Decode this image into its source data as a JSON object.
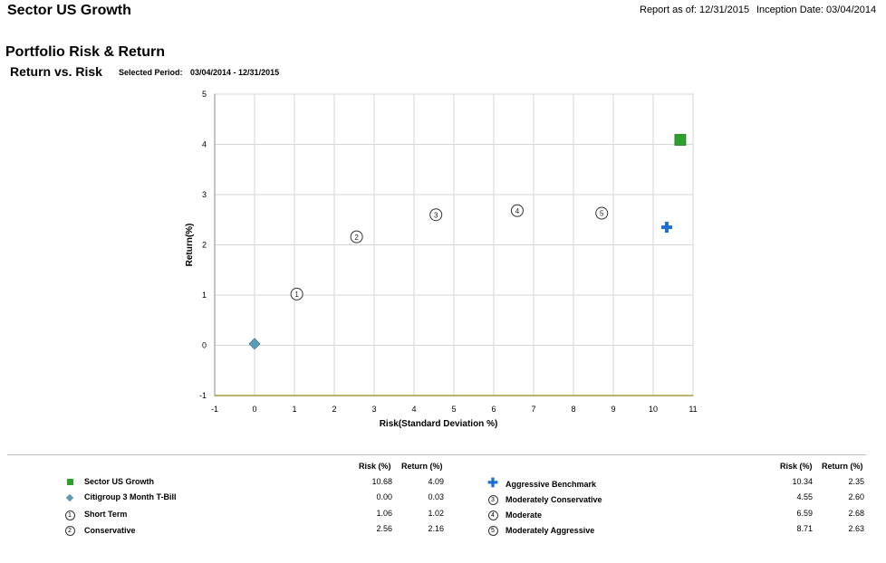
{
  "header": {
    "fund_name": "Sector US Growth",
    "report_as_of": "Report as of: 12/31/2015",
    "inception": "Inception Date: 03/04/2014"
  },
  "section": {
    "title": "Portfolio Risk & Return",
    "chart_title": "Return vs. Risk",
    "period_label": "Selected Period:",
    "period_value": "03/04/2014  -  12/31/2015"
  },
  "chart_data": {
    "type": "scatter",
    "xlabel": "Risk(Standard Deviation %)",
    "ylabel": "Return(%)",
    "xlim": [
      -1,
      11
    ],
    "ylim": [
      -1,
      5
    ],
    "xticks": [
      -1,
      0,
      1,
      2,
      3,
      4,
      5,
      6,
      7,
      8,
      9,
      10,
      11
    ],
    "yticks": [
      -1,
      0,
      1,
      2,
      3,
      4,
      5
    ],
    "grid": true,
    "points": [
      {
        "name": "Sector US Growth",
        "marker": "square",
        "x": 10.68,
        "y": 4.09,
        "color": "#2ca02c"
      },
      {
        "name": "Citigroup 3 Month T-Bill",
        "marker": "diamond",
        "x": 0.0,
        "y": 0.03,
        "color": "#5b9bb5"
      },
      {
        "name": "Short Term",
        "marker": "circle",
        "label": "1",
        "x": 1.06,
        "y": 1.02
      },
      {
        "name": "Conservative",
        "marker": "circle",
        "label": "2",
        "x": 2.56,
        "y": 2.16
      },
      {
        "name": "Aggressive Benchmark",
        "marker": "plus",
        "x": 10.34,
        "y": 2.35,
        "color": "#1f6fd1"
      },
      {
        "name": "Moderately Conservative",
        "marker": "circle",
        "label": "3",
        "x": 4.55,
        "y": 2.6
      },
      {
        "name": "Moderate",
        "marker": "circle",
        "label": "4",
        "x": 6.59,
        "y": 2.68
      },
      {
        "name": "Moderately Aggressive",
        "marker": "circle",
        "label": "5",
        "x": 8.71,
        "y": 2.63
      }
    ]
  },
  "legend": {
    "risk_header": "Risk (%)",
    "return_header": "Return (%)",
    "left": [
      {
        "name": "Sector US Growth",
        "risk": "10.68",
        "ret": "4.09"
      },
      {
        "name": "Citigroup 3 Month T-Bill",
        "risk": "0.00",
        "ret": "0.03"
      },
      {
        "name": "Short Term",
        "risk": "1.06",
        "ret": "1.02",
        "symbol": "1"
      },
      {
        "name": "Conservative",
        "risk": "2.56",
        "ret": "2.16",
        "symbol": "2"
      }
    ],
    "right": [
      {
        "name": "Aggressive Benchmark",
        "risk": "10.34",
        "ret": "2.35"
      },
      {
        "name": "Moderately Conservative",
        "risk": "4.55",
        "ret": "2.60",
        "symbol": "3"
      },
      {
        "name": "Moderate",
        "risk": "6.59",
        "ret": "2.68",
        "symbol": "4"
      },
      {
        "name": "Moderately Aggressive",
        "risk": "8.71",
        "ret": "2.63",
        "symbol": "5"
      }
    ]
  }
}
